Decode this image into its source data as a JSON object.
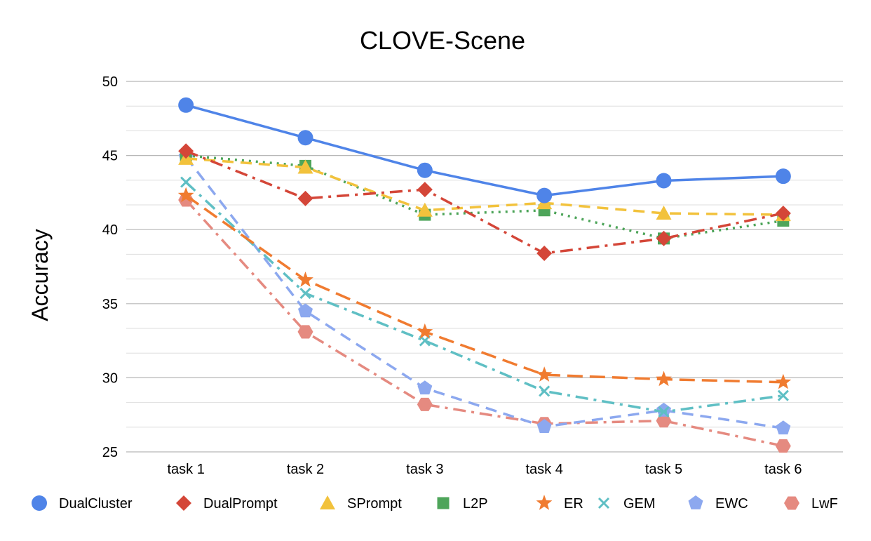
{
  "chart_data": {
    "type": "line",
    "title": "CLOVE-Scene",
    "xlabel": "",
    "ylabel": "Accuracy",
    "categories": [
      "task 1",
      "task 2",
      "task 3",
      "task 4",
      "task 5",
      "task 6"
    ],
    "ylim": [
      25,
      50
    ],
    "yticks": [
      25,
      30,
      35,
      40,
      45,
      50
    ],
    "grid": true,
    "legend_position": "bottom",
    "series": [
      {
        "name": "DualCluster",
        "values": [
          48.4,
          46.2,
          44.0,
          42.3,
          43.3,
          43.6
        ],
        "color": "#4f84e8",
        "marker": "circle",
        "dash": "solid"
      },
      {
        "name": "DualPrompt",
        "values": [
          45.3,
          42.1,
          42.7,
          38.4,
          39.4,
          41.1
        ],
        "color": "#d44638",
        "marker": "diamond",
        "dash": "dashdot"
      },
      {
        "name": "SPrompt",
        "values": [
          44.8,
          44.2,
          41.3,
          41.8,
          41.1,
          41.0
        ],
        "color": "#f2c23c",
        "marker": "triangle",
        "dash": "dashed"
      },
      {
        "name": "L2P",
        "values": [
          45.0,
          44.3,
          41.0,
          41.3,
          39.4,
          40.6
        ],
        "color": "#4ea55a",
        "marker": "square",
        "dash": "dotted"
      },
      {
        "name": "ER",
        "values": [
          42.3,
          36.6,
          33.1,
          30.2,
          29.9,
          29.7
        ],
        "color": "#f07b30",
        "marker": "star",
        "dash": "longdash"
      },
      {
        "name": "GEM",
        "values": [
          43.2,
          35.7,
          32.5,
          29.1,
          27.7,
          28.8
        ],
        "color": "#5fbfc4",
        "marker": "x",
        "dash": "dashdot"
      },
      {
        "name": "EWC",
        "values": [
          44.9,
          34.5,
          29.3,
          26.7,
          27.8,
          26.6
        ],
        "color": "#8ca8ef",
        "marker": "pentagon",
        "dash": "dashed"
      },
      {
        "name": "LwF",
        "values": [
          42.0,
          33.1,
          28.2,
          26.9,
          27.1,
          25.4
        ],
        "color": "#e58a80",
        "marker": "hexagon",
        "dash": "dashdot"
      }
    ]
  }
}
